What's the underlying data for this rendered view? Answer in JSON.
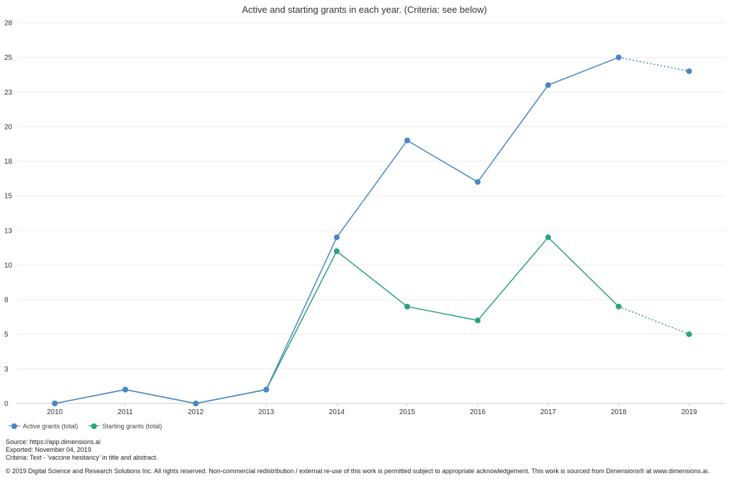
{
  "chart_data": {
    "type": "line",
    "title": "Active and starting grants in each year. (Criteria: see below)",
    "categories": [
      "2010",
      "2011",
      "2012",
      "2013",
      "2014",
      "2015",
      "2016",
      "2017",
      "2018",
      "2019"
    ],
    "y_ticks": [
      "0",
      "3",
      "5",
      "8",
      "10",
      "13",
      "15",
      "18",
      "20",
      "23",
      "25",
      "28"
    ],
    "ylim": [
      0,
      27.5
    ],
    "grid": true,
    "legend_position": "bottom-left",
    "dotted_last_segment": true,
    "series": [
      {
        "name": "Active grants (total)",
        "color": "#4a86c8",
        "values": [
          0,
          1,
          0,
          1,
          12,
          19,
          16,
          23,
          25,
          24
        ]
      },
      {
        "name": "Starting grants (total)",
        "color": "#2ba37a",
        "values": [
          0,
          1,
          0,
          1,
          11,
          7,
          6,
          12,
          7,
          5
        ]
      }
    ]
  },
  "footer": {
    "source": "Source: https://app.dimensions.ai",
    "exported": "Exported: November 04, 2019",
    "criteria": "Criteria: Text - 'vaccine hesitancy' in title and abstract.",
    "copyright": "© 2019 Digital Science and Research Solutions Inc. All rights reserved. Non-commercial redistribution / external re-use of this work is permitted subject to appropriate acknowledgement. This work is sourced from Dimensions® at www.dimensions.ai."
  }
}
